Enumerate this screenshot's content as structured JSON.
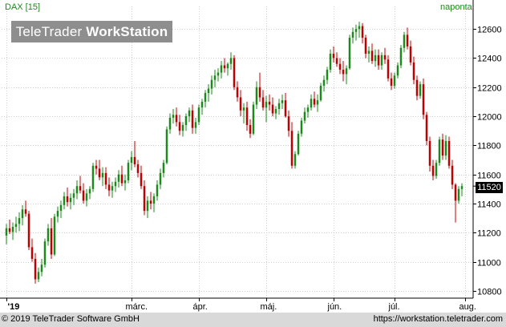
{
  "header": {
    "instrument_label": "DAX [15]",
    "period_label": "naponta"
  },
  "watermark": {
    "brand": "TeleTrader",
    "product": "WorkStation"
  },
  "footer": {
    "copyright": "© 2019 TeleTrader Software GmbH",
    "url": "https://workstation.teletrader.com"
  },
  "colors": {
    "up": "#1a8a1a",
    "down": "#c00000",
    "grid": "#cfcfcf",
    "axis": "#000000",
    "background": "#ffffff",
    "footer_bg": "#d9d9d9"
  },
  "chart_data": {
    "type": "candlestick",
    "title": "DAX [15]",
    "period": "naponta",
    "last_price": "11520",
    "ylim": [
      10750,
      12700
    ],
    "y_ticks": [
      10800,
      11000,
      11200,
      11400,
      11600,
      11800,
      12000,
      12200,
      12400,
      12600
    ],
    "x_ticks": [
      {
        "label": "'19",
        "index": 0
      },
      {
        "label": "márc.",
        "index": 39
      },
      {
        "label": "ápr.",
        "index": 60
      },
      {
        "label": "máj.",
        "index": 81
      },
      {
        "label": "jún.",
        "index": 102
      },
      {
        "label": "júl.",
        "index": 121
      },
      {
        "label": "aug.",
        "index": 143
      }
    ],
    "grid": true,
    "candles": [
      [
        11180,
        11260,
        11120,
        11230
      ],
      [
        11230,
        11290,
        11190,
        11205
      ],
      [
        11205,
        11270,
        11150,
        11240
      ],
      [
        11240,
        11310,
        11200,
        11260
      ],
      [
        11260,
        11340,
        11210,
        11300
      ],
      [
        11300,
        11390,
        11250,
        11360
      ],
      [
        11360,
        11420,
        11310,
        11330
      ],
      [
        11330,
        11350,
        11080,
        11100
      ],
      [
        11100,
        11160,
        11000,
        11020
      ],
      [
        11020,
        11060,
        10850,
        10880
      ],
      [
        10880,
        10960,
        10860,
        10930
      ],
      [
        10930,
        11020,
        10900,
        10980
      ],
      [
        10980,
        11160,
        10960,
        11140
      ],
      [
        11140,
        11260,
        11110,
        11230
      ],
      [
        11230,
        11300,
        11020,
        11050
      ],
      [
        11050,
        11330,
        11040,
        11310
      ],
      [
        11310,
        11380,
        11270,
        11350
      ],
      [
        11350,
        11420,
        11300,
        11390
      ],
      [
        11390,
        11480,
        11360,
        11450
      ],
      [
        11450,
        11510,
        11380,
        11410
      ],
      [
        11410,
        11470,
        11360,
        11440
      ],
      [
        11440,
        11500,
        11390,
        11470
      ],
      [
        11470,
        11560,
        11430,
        11520
      ],
      [
        11520,
        11590,
        11470,
        11490
      ],
      [
        11490,
        11540,
        11400,
        11420
      ],
      [
        11420,
        11500,
        11380,
        11470
      ],
      [
        11470,
        11520,
        11430,
        11500
      ],
      [
        11500,
        11680,
        11480,
        11660
      ],
      [
        11660,
        11700,
        11600,
        11640
      ],
      [
        11640,
        11700,
        11560,
        11580
      ],
      [
        11580,
        11650,
        11520,
        11610
      ],
      [
        11610,
        11650,
        11500,
        11530
      ],
      [
        11530,
        11580,
        11450,
        11490
      ],
      [
        11490,
        11550,
        11440,
        11520
      ],
      [
        11520,
        11580,
        11480,
        11550
      ],
      [
        11550,
        11630,
        11510,
        11600
      ],
      [
        11600,
        11660,
        11520,
        11540
      ],
      [
        11540,
        11600,
        11490,
        11560
      ],
      [
        11560,
        11700,
        11540,
        11680
      ],
      [
        11680,
        11760,
        11630,
        11720
      ],
      [
        11720,
        11830,
        11650,
        11670
      ],
      [
        11670,
        11700,
        11580,
        11610
      ],
      [
        11610,
        11660,
        11500,
        11520
      ],
      [
        11520,
        11560,
        11320,
        11350
      ],
      [
        11350,
        11450,
        11300,
        11420
      ],
      [
        11420,
        11480,
        11360,
        11400
      ],
      [
        11400,
        11470,
        11340,
        11450
      ],
      [
        11450,
        11560,
        11420,
        11530
      ],
      [
        11530,
        11640,
        11500,
        11610
      ],
      [
        11610,
        11700,
        11580,
        11680
      ],
      [
        11680,
        11930,
        11670,
        11910
      ],
      [
        11910,
        12020,
        11880,
        11990
      ],
      [
        11990,
        12050,
        11950,
        12010
      ],
      [
        12010,
        12060,
        11930,
        11960
      ],
      [
        11960,
        12010,
        11870,
        11900
      ],
      [
        11900,
        11960,
        11860,
        11940
      ],
      [
        11940,
        12020,
        11900,
        12000
      ],
      [
        12000,
        12060,
        11960,
        12040
      ],
      [
        12040,
        12080,
        11880,
        11920
      ],
      [
        11920,
        11990,
        11880,
        11960
      ],
      [
        11960,
        12080,
        11940,
        12060
      ],
      [
        12060,
        12120,
        12010,
        12100
      ],
      [
        12100,
        12180,
        12060,
        12160
      ],
      [
        12160,
        12220,
        12100,
        12190
      ],
      [
        12190,
        12280,
        12150,
        12250
      ],
      [
        12250,
        12320,
        12200,
        12280
      ],
      [
        12280,
        12330,
        12240,
        12300
      ],
      [
        12300,
        12380,
        12260,
        12350
      ],
      [
        12350,
        12400,
        12300,
        12330
      ],
      [
        12330,
        12370,
        12280,
        12360
      ],
      [
        12360,
        12440,
        12320,
        12400
      ],
      [
        12400,
        12420,
        12180,
        12200
      ],
      [
        12200,
        12240,
        12100,
        12130
      ],
      [
        12130,
        12180,
        12000,
        12040
      ],
      [
        12040,
        12090,
        11950,
        12060
      ],
      [
        12060,
        12100,
        11900,
        11940
      ],
      [
        11940,
        11980,
        11850,
        11880
      ],
      [
        11880,
        12100,
        11870,
        12080
      ],
      [
        12080,
        12240,
        12050,
        12200
      ],
      [
        12200,
        12300,
        12100,
        12130
      ],
      [
        12130,
        12180,
        12040,
        12060
      ],
      [
        12060,
        12140,
        11960,
        12100
      ],
      [
        12100,
        12150,
        12040,
        12080
      ],
      [
        12080,
        12130,
        12000,
        12020
      ],
      [
        12020,
        12070,
        11980,
        12050
      ],
      [
        12050,
        12120,
        12010,
        12090
      ],
      [
        12090,
        12150,
        12050,
        12110
      ],
      [
        12110,
        12160,
        11990,
        12000
      ],
      [
        12000,
        12040,
        11860,
        11900
      ],
      [
        11900,
        11960,
        11640,
        11660
      ],
      [
        11660,
        11760,
        11640,
        11740
      ],
      [
        11740,
        11900,
        11730,
        11880
      ],
      [
        11880,
        11990,
        11860,
        11970
      ],
      [
        11970,
        12060,
        11950,
        12030
      ],
      [
        12030,
        12080,
        11990,
        12060
      ],
      [
        12060,
        12150,
        12040,
        12120
      ],
      [
        12120,
        12170,
        12060,
        12080
      ],
      [
        12080,
        12150,
        12030,
        12110
      ],
      [
        12110,
        12230,
        12100,
        12210
      ],
      [
        12210,
        12280,
        12170,
        12250
      ],
      [
        12250,
        12340,
        12220,
        12320
      ],
      [
        12320,
        12460,
        12300,
        12430
      ],
      [
        12430,
        12480,
        12370,
        12400
      ],
      [
        12400,
        12440,
        12340,
        12360
      ],
      [
        12360,
        12400,
        12290,
        12320
      ],
      [
        12320,
        12380,
        12240,
        12290
      ],
      [
        12290,
        12350,
        12220,
        12330
      ],
      [
        12330,
        12560,
        12320,
        12540
      ],
      [
        12540,
        12610,
        12500,
        12580
      ],
      [
        12580,
        12630,
        12520,
        12600
      ],
      [
        12600,
        12650,
        12540,
        12620
      ],
      [
        12620,
        12640,
        12500,
        12540
      ],
      [
        12540,
        12560,
        12400,
        12430
      ],
      [
        12430,
        12480,
        12370,
        12450
      ],
      [
        12450,
        12500,
        12360,
        12380
      ],
      [
        12380,
        12460,
        12340,
        12420
      ],
      [
        12420,
        12460,
        12320,
        12350
      ],
      [
        12350,
        12440,
        12320,
        12420
      ],
      [
        12420,
        12470,
        12360,
        12390
      ],
      [
        12390,
        12420,
        12240,
        12260
      ],
      [
        12260,
        12300,
        12180,
        12210
      ],
      [
        12210,
        12300,
        12190,
        12280
      ],
      [
        12280,
        12370,
        12260,
        12350
      ],
      [
        12350,
        12490,
        12330,
        12470
      ],
      [
        12470,
        12580,
        12440,
        12560
      ],
      [
        12560,
        12610,
        12460,
        12480
      ],
      [
        12480,
        12520,
        12350,
        12370
      ],
      [
        12370,
        12410,
        12220,
        12250
      ],
      [
        12250,
        12280,
        12110,
        12140
      ],
      [
        12140,
        12240,
        12120,
        12220
      ],
      [
        12220,
        12260,
        11980,
        12010
      ],
      [
        12010,
        12030,
        11800,
        11830
      ],
      [
        11830,
        11860,
        11620,
        11660
      ],
      [
        11660,
        11700,
        11560,
        11590
      ],
      [
        11590,
        11700,
        11570,
        11680
      ],
      [
        11680,
        11860,
        11660,
        11840
      ],
      [
        11840,
        11880,
        11700,
        11730
      ],
      [
        11730,
        11870,
        11700,
        11830
      ],
      [
        11830,
        11860,
        11640,
        11660
      ],
      [
        11660,
        11700,
        11500,
        11530
      ],
      [
        11530,
        11540,
        11270,
        11420
      ],
      [
        11420,
        11520,
        11400,
        11500
      ],
      [
        11500,
        11540,
        11450,
        11520
      ]
    ]
  }
}
